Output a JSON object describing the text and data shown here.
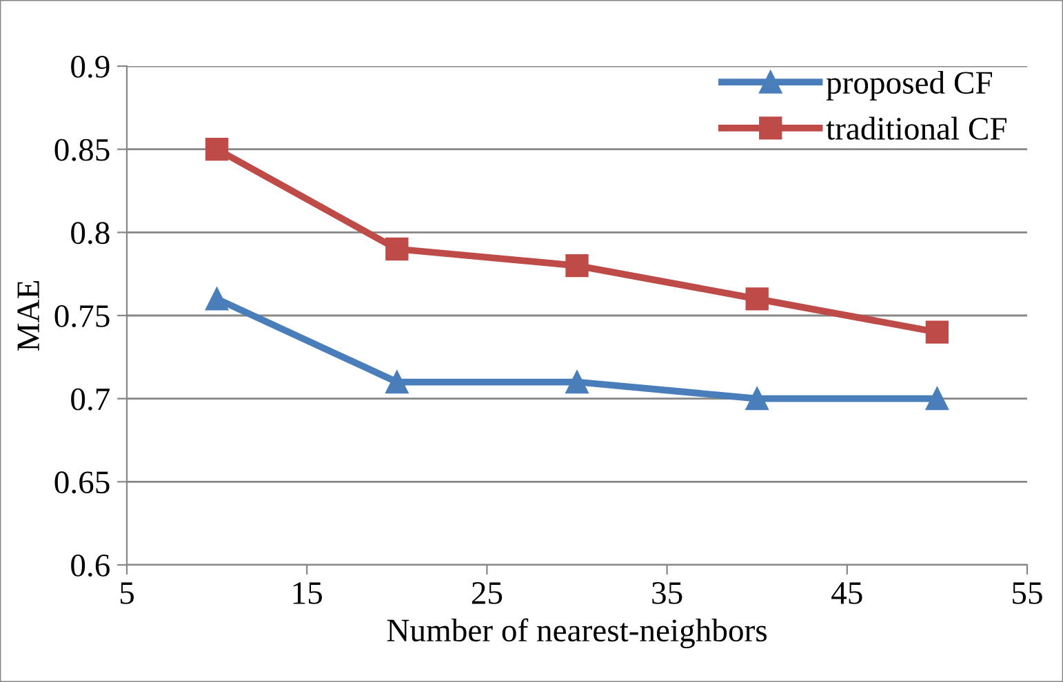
{
  "chart_data": {
    "type": "line",
    "xlabel": "Number of nearest-neighbors",
    "ylabel": "MAE",
    "x": [
      10,
      20,
      30,
      40,
      50
    ],
    "series": [
      {
        "name": "proposed CF",
        "color": "#4a7ebb",
        "marker": "triangle",
        "values": [
          0.76,
          0.71,
          0.71,
          0.7,
          0.7
        ]
      },
      {
        "name": "traditional CF",
        "color": "#be4b48",
        "marker": "square",
        "values": [
          0.85,
          0.79,
          0.78,
          0.76,
          0.74
        ]
      }
    ],
    "xlim": [
      5,
      55
    ],
    "xticks": [
      5,
      15,
      25,
      35,
      45,
      55
    ],
    "ylim": [
      0.6,
      0.9
    ],
    "yticks": [
      0.6,
      0.65,
      0.7,
      0.75,
      0.8,
      0.85,
      0.9
    ],
    "grid": "y",
    "legend": "top right",
    "line_style": "solid"
  }
}
